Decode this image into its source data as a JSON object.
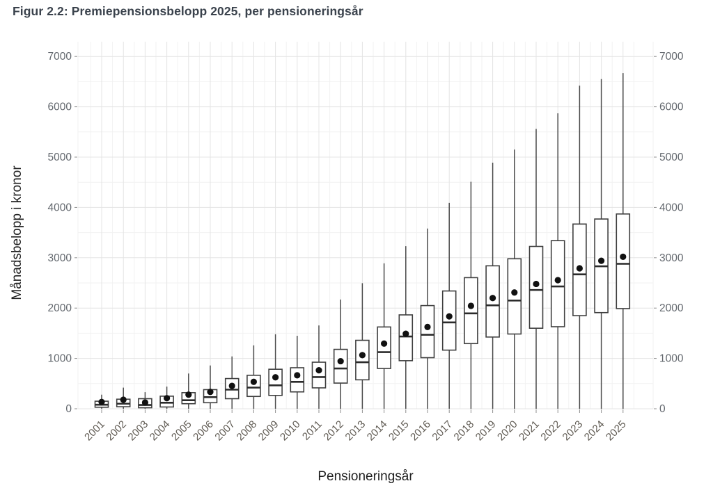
{
  "title": "Figur 2.2: Premiepensionsbelopp 2025, per pensioneringsår",
  "colors": {
    "background": "#ffffff",
    "title_text": "#3a424c",
    "axis_title_text": "#1f1f1f",
    "tick_label_text": "#63686e",
    "year_label_text": "#5f5a52",
    "grid_major": "#e4e4e4",
    "grid_minor": "#f2f2f2",
    "tick_mark": "#8f8f8f",
    "box_fill": "#ffffff",
    "box_stroke": "#3f3f3f",
    "median_stroke": "#2b2b2b",
    "whisker_stroke": "#4a4a4a",
    "mean_dot": "#111111"
  },
  "chart_data": {
    "type": "boxplot",
    "title": "Figur 2.2: Premiepensionsbelopp 2025, per pensioneringsår",
    "xlabel": "Pensioneringsår",
    "ylabel": "Månadsbelopp i kronor",
    "ylim": [
      0,
      7000
    ],
    "yticks": [
      0,
      1000,
      2000,
      3000,
      4000,
      5000,
      6000,
      7000
    ],
    "ytick_minor_interval": 500,
    "duplicate_y_axis_right": true,
    "grid": "horizontal and vertical major+minor, light gray, white panel",
    "legend": "none",
    "marker_note": "black filled dot = mean, thick line = median, box = Q1..Q3, whiskers reach from 0 up to max",
    "categories": [
      "2001",
      "2002",
      "2003",
      "2004",
      "2005",
      "2006",
      "2007",
      "2008",
      "2009",
      "2010",
      "2011",
      "2012",
      "2013",
      "2014",
      "2015",
      "2016",
      "2017",
      "2018",
      "2019",
      "2020",
      "2021",
      "2022",
      "2023",
      "2024",
      "2025"
    ],
    "boxes": [
      {
        "year": "2001",
        "whisker_low": 0,
        "q1": 30,
        "median": 80,
        "q3": 150,
        "whisker_high": 280,
        "mean": 135
      },
      {
        "year": "2002",
        "whisker_low": 0,
        "q1": 40,
        "median": 100,
        "q3": 190,
        "whisker_high": 420,
        "mean": 180
      },
      {
        "year": "2003",
        "whisker_low": 0,
        "q1": 20,
        "median": 75,
        "q3": 200,
        "whisker_high": 330,
        "mean": 125
      },
      {
        "year": "2004",
        "whisker_low": 0,
        "q1": 35,
        "median": 120,
        "q3": 250,
        "whisker_high": 440,
        "mean": 210
      },
      {
        "year": "2005",
        "whisker_low": 0,
        "q1": 100,
        "median": 170,
        "q3": 320,
        "whisker_high": 700,
        "mean": 280
      },
      {
        "year": "2006",
        "whisker_low": 0,
        "q1": 120,
        "median": 230,
        "q3": 380,
        "whisker_high": 860,
        "mean": 335
      },
      {
        "year": "2007",
        "whisker_low": 0,
        "q1": 200,
        "median": 380,
        "q3": 600,
        "whisker_high": 1040,
        "mean": 455
      },
      {
        "year": "2008",
        "whisker_low": 0,
        "q1": 245,
        "median": 420,
        "q3": 665,
        "whisker_high": 1260,
        "mean": 535
      },
      {
        "year": "2009",
        "whisker_low": 0,
        "q1": 265,
        "median": 465,
        "q3": 785,
        "whisker_high": 1480,
        "mean": 625
      },
      {
        "year": "2010",
        "whisker_low": 0,
        "q1": 335,
        "median": 535,
        "q3": 815,
        "whisker_high": 1450,
        "mean": 665
      },
      {
        "year": "2011",
        "whisker_low": 0,
        "q1": 415,
        "median": 630,
        "q3": 925,
        "whisker_high": 1655,
        "mean": 765
      },
      {
        "year": "2012",
        "whisker_low": 0,
        "q1": 510,
        "median": 800,
        "q3": 1180,
        "whisker_high": 2170,
        "mean": 945
      },
      {
        "year": "2013",
        "whisker_low": 0,
        "q1": 575,
        "median": 925,
        "q3": 1360,
        "whisker_high": 2495,
        "mean": 1065
      },
      {
        "year": "2014",
        "whisker_low": 0,
        "q1": 800,
        "median": 1125,
        "q3": 1625,
        "whisker_high": 2890,
        "mean": 1295
      },
      {
        "year": "2015",
        "whisker_low": 0,
        "q1": 955,
        "median": 1435,
        "q3": 1865,
        "whisker_high": 3230,
        "mean": 1490
      },
      {
        "year": "2016",
        "whisker_low": 0,
        "q1": 1015,
        "median": 1470,
        "q3": 2050,
        "whisker_high": 3580,
        "mean": 1625
      },
      {
        "year": "2017",
        "whisker_low": 0,
        "q1": 1165,
        "median": 1715,
        "q3": 2340,
        "whisker_high": 4090,
        "mean": 1835
      },
      {
        "year": "2018",
        "whisker_low": 0,
        "q1": 1295,
        "median": 1895,
        "q3": 2605,
        "whisker_high": 4510,
        "mean": 2045
      },
      {
        "year": "2019",
        "whisker_low": 0,
        "q1": 1425,
        "median": 2055,
        "q3": 2840,
        "whisker_high": 4890,
        "mean": 2200
      },
      {
        "year": "2020",
        "whisker_low": 0,
        "q1": 1485,
        "median": 2150,
        "q3": 2980,
        "whisker_high": 5150,
        "mean": 2310
      },
      {
        "year": "2021",
        "whisker_low": 0,
        "q1": 1600,
        "median": 2360,
        "q3": 3225,
        "whisker_high": 5560,
        "mean": 2480
      },
      {
        "year": "2022",
        "whisker_low": 0,
        "q1": 1630,
        "median": 2430,
        "q3": 3340,
        "whisker_high": 5870,
        "mean": 2555
      },
      {
        "year": "2023",
        "whisker_low": 0,
        "q1": 1850,
        "median": 2670,
        "q3": 3670,
        "whisker_high": 6420,
        "mean": 2790
      },
      {
        "year": "2024",
        "whisker_low": 0,
        "q1": 1910,
        "median": 2830,
        "q3": 3770,
        "whisker_high": 6550,
        "mean": 2940
      },
      {
        "year": "2025",
        "whisker_low": 0,
        "q1": 1990,
        "median": 2880,
        "q3": 3870,
        "whisker_high": 6670,
        "mean": 3020
      }
    ]
  }
}
